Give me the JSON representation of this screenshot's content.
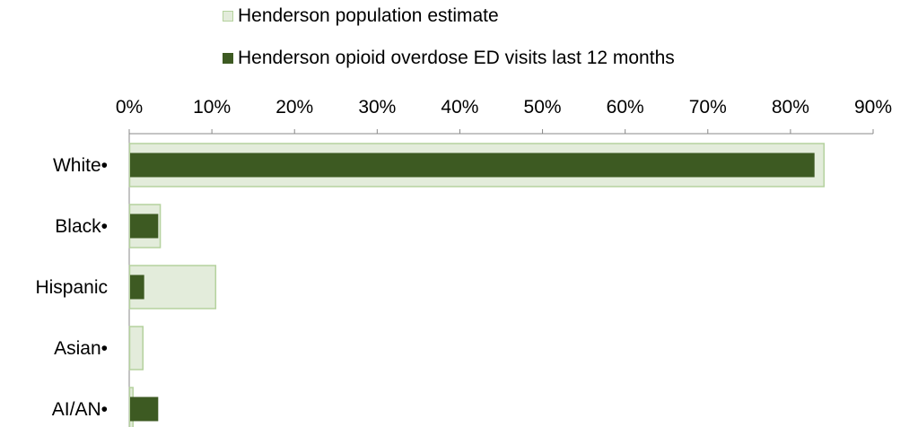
{
  "chart_data": {
    "type": "bar",
    "orientation": "horizontal",
    "categories": [
      "White•",
      "Black•",
      "Hispanic",
      "Asian•",
      "AI/AN•"
    ],
    "series": [
      {
        "name": "Henderson population estimate",
        "values": [
          84.0,
          3.7,
          10.4,
          1.6,
          0.4
        ],
        "color": "#e3ecdb",
        "stroke": "#b5d29e"
      },
      {
        "name": "Henderson opioid overdose ED visits last 12 months",
        "values": [
          82.8,
          3.4,
          1.7,
          0.0,
          3.4
        ],
        "color": "#3d5a22"
      }
    ],
    "xlim": [
      0,
      90
    ],
    "xticks": [
      "0%",
      "10%",
      "20%",
      "30%",
      "40%",
      "50%",
      "60%",
      "70%",
      "80%",
      "90%"
    ],
    "axis_position": "top",
    "legend_position": "top",
    "grid": false
  }
}
